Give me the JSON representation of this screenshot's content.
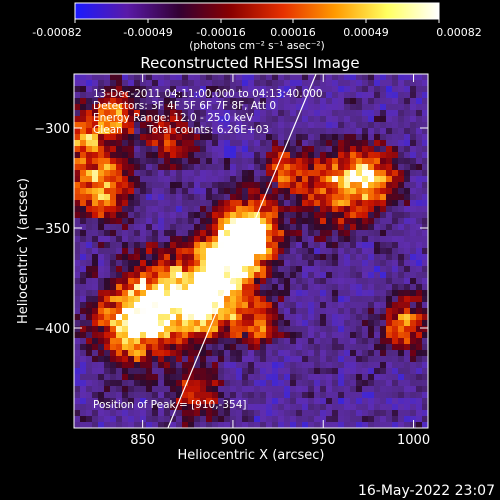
{
  "colorbar": {
    "tick_labels": [
      "-0.00082",
      "-0.00049",
      "-0.00016",
      "0.00016",
      "0.00049",
      "0.00082"
    ],
    "unit_label": "(photons cm⁻² s⁻¹ asec⁻²)",
    "colors": [
      "#1a1aff",
      "#5a1aa8",
      "#330033",
      "#8a0000",
      "#e63000",
      "#ff9a00",
      "#ffff60",
      "#ffffff"
    ]
  },
  "title": "Reconstructed RHESSI Image",
  "annotation": {
    "time_range": "13-Dec-2011 04:11:00.000 to 04:13:40.000",
    "detectors": "Detectors: 3F 4F 5F 6F 7F 8F, Att 0",
    "energy_range": "Energy Range: 12.0 - 25.0 keV",
    "clean": "Clean",
    "total_counts": "Total counts: 6.26E+03"
  },
  "peak_label": "Position of Peak = [910,-354]",
  "timestamp": "16-May-2022 23:07",
  "chart_data": {
    "type": "heatmap",
    "title": "Reconstructed RHESSI Image",
    "xlabel": "Heliocentric X (arcsec)",
    "ylabel": "Heliocentric Y (arcsec)",
    "xlim": [
      812,
      1008
    ],
    "ylim": [
      -450,
      -273
    ],
    "x_ticks": [
      850,
      900,
      950,
      1000
    ],
    "y_ticks": [
      -300,
      -350,
      -400
    ],
    "x_tick_labels": [
      "850",
      "900",
      "950",
      "1000"
    ],
    "y_tick_labels": [
      "−300",
      "−350",
      "−400"
    ],
    "colorbar_range": [
      -0.00082,
      0.00082
    ],
    "peak_position": [
      910,
      -354
    ],
    "limb_line": [
      [
        864,
        -450
      ],
      [
        946,
        -273
      ]
    ],
    "grid": false,
    "hot_regions": [
      {
        "x": 910,
        "y": -352,
        "intensity": 1.0,
        "spread": 12
      },
      {
        "x": 897,
        "y": -366,
        "intensity": 0.8,
        "spread": 14
      },
      {
        "x": 887,
        "y": -388,
        "intensity": 0.72,
        "spread": 12
      },
      {
        "x": 862,
        "y": -386,
        "intensity": 0.8,
        "spread": 16
      },
      {
        "x": 842,
        "y": -399,
        "intensity": 0.68,
        "spread": 14
      },
      {
        "x": 826,
        "y": -330,
        "intensity": 0.75,
        "spread": 12
      },
      {
        "x": 818,
        "y": -302,
        "intensity": 0.55,
        "spread": 10
      },
      {
        "x": 838,
        "y": -293,
        "intensity": 0.45,
        "spread": 9
      },
      {
        "x": 866,
        "y": -304,
        "intensity": 0.4,
        "spread": 10
      },
      {
        "x": 958,
        "y": -332,
        "intensity": 0.55,
        "spread": 14
      },
      {
        "x": 977,
        "y": -324,
        "intensity": 0.6,
        "spread": 11
      },
      {
        "x": 928,
        "y": -320,
        "intensity": 0.38,
        "spread": 9
      },
      {
        "x": 995,
        "y": -398,
        "intensity": 0.55,
        "spread": 10
      },
      {
        "x": 878,
        "y": -432,
        "intensity": 0.35,
        "spread": 10
      },
      {
        "x": 915,
        "y": -398,
        "intensity": 0.45,
        "spread": 9
      }
    ]
  }
}
